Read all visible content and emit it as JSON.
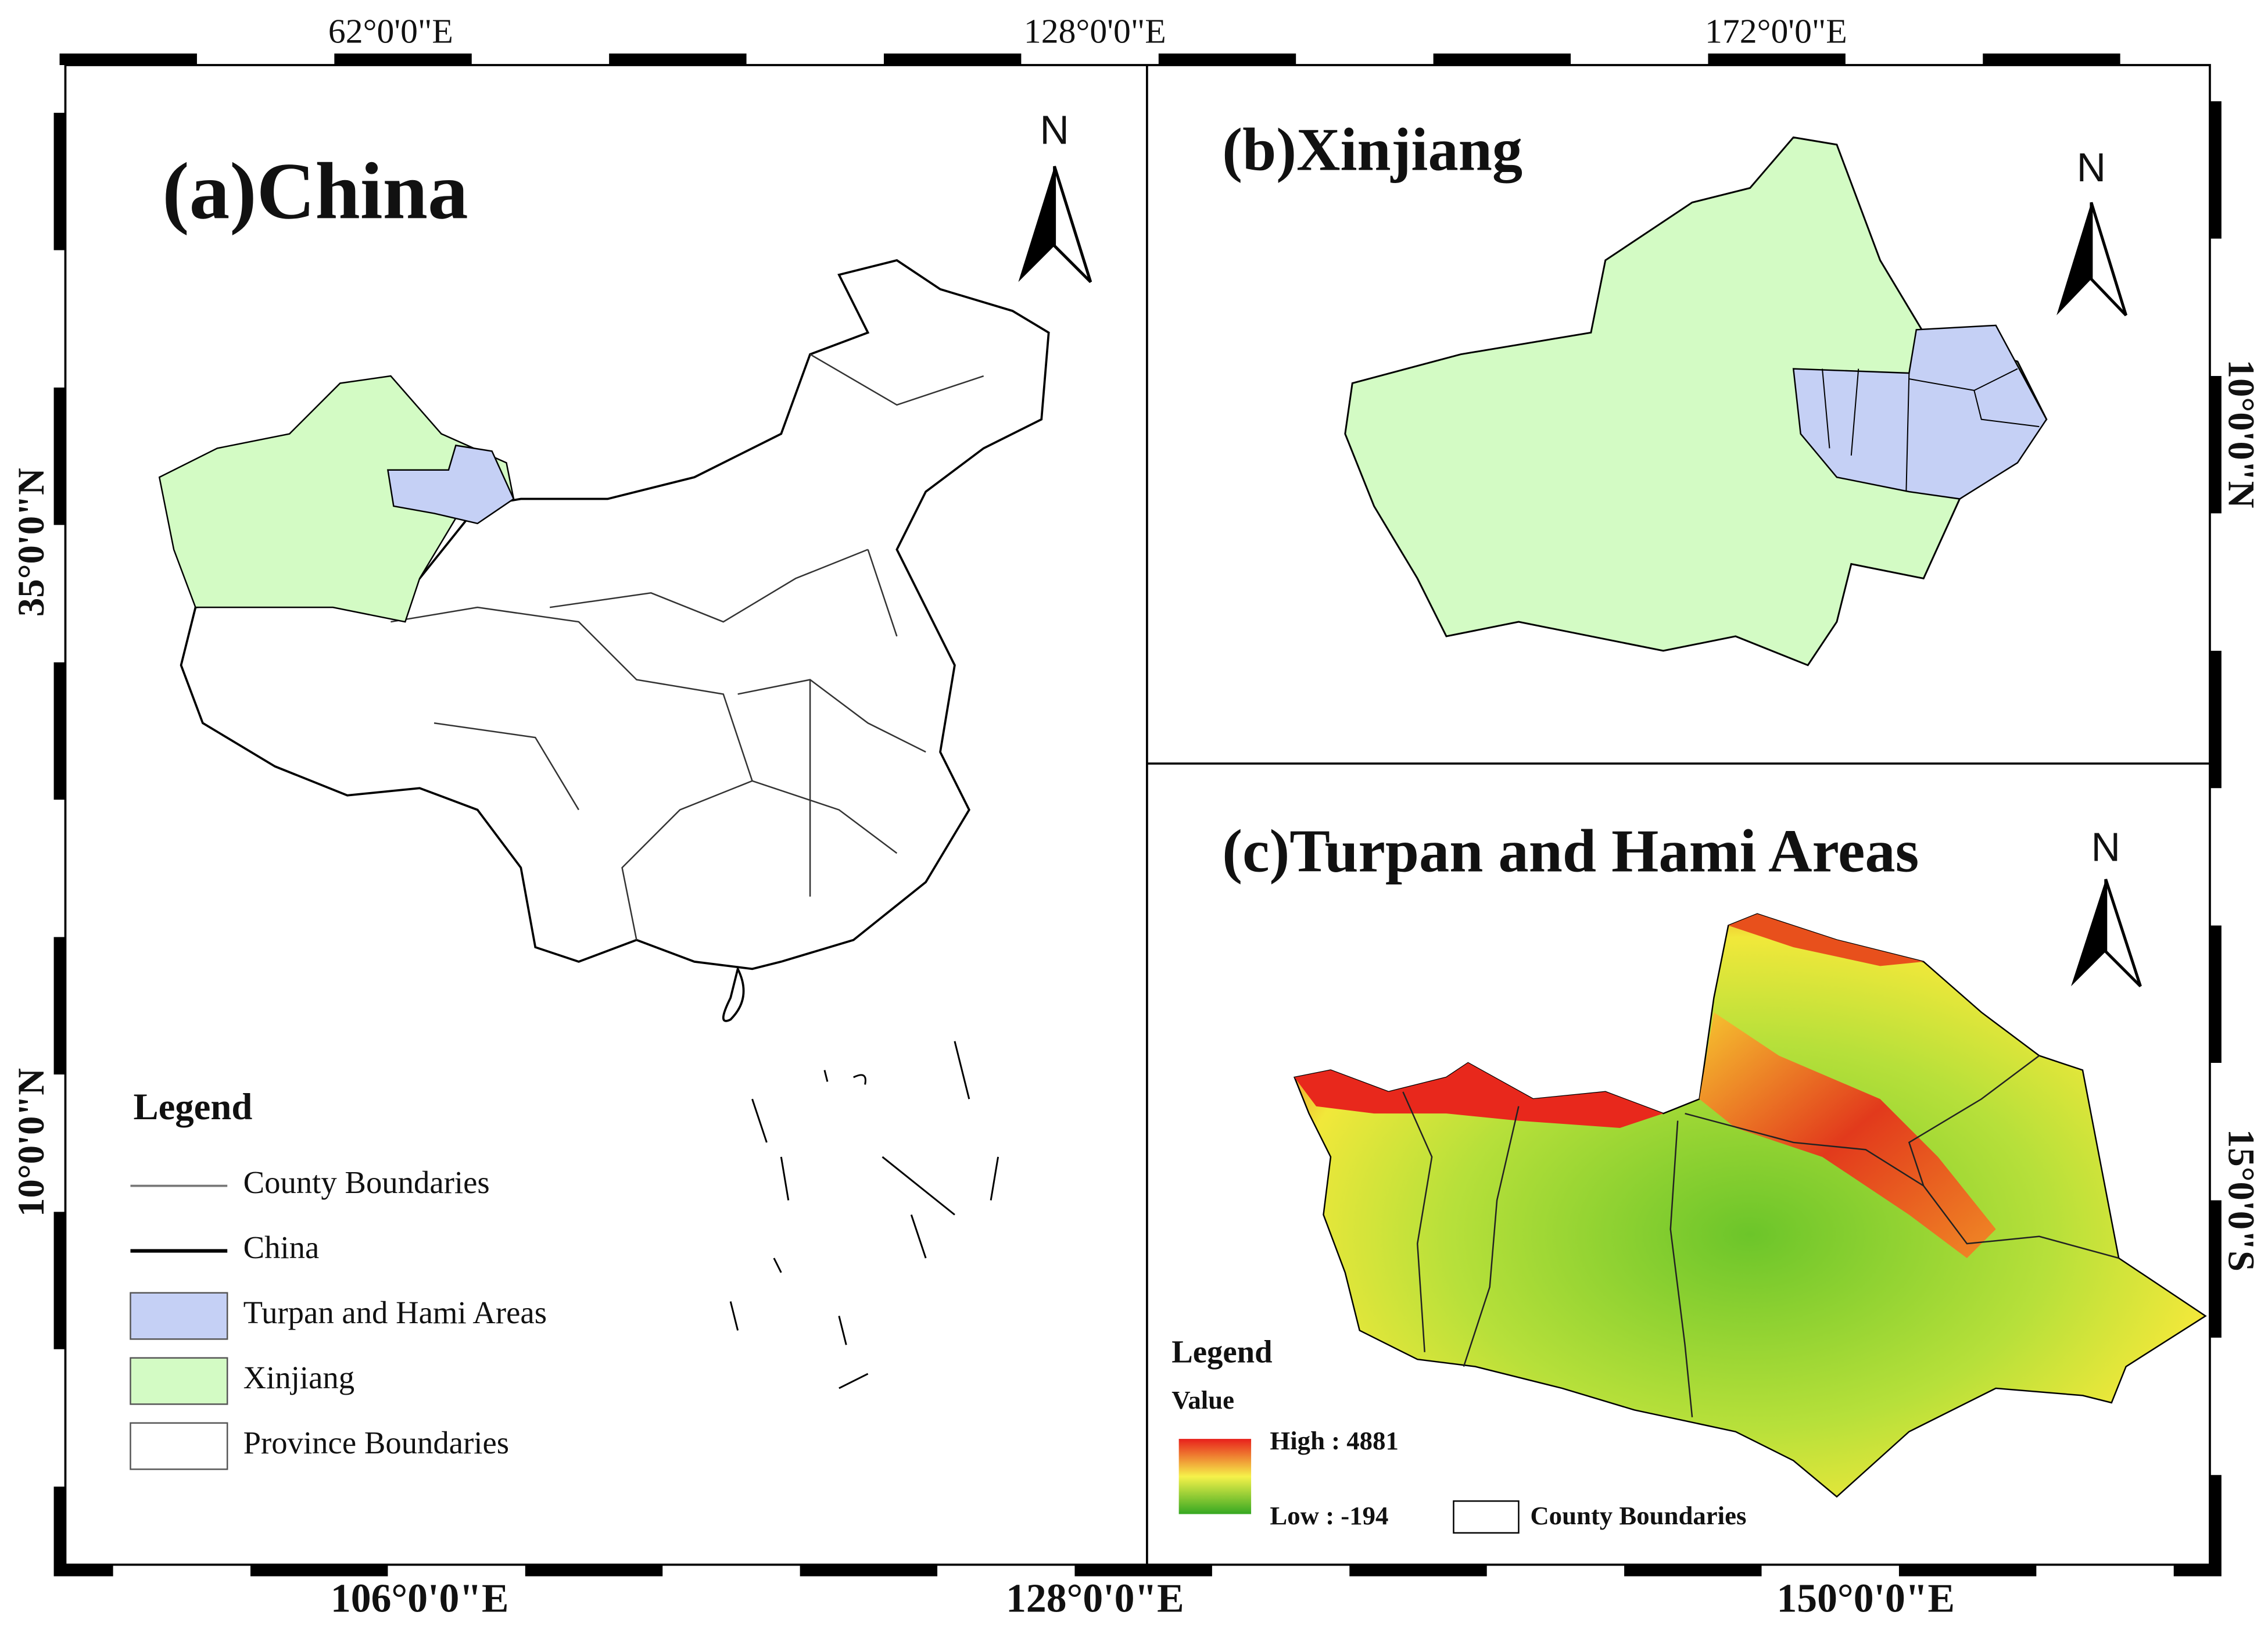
{
  "frame": {
    "top_labels": [
      "62°0'0\"E",
      "128°0'0\"E",
      "172°0'0\"E"
    ],
    "bottom_labels": [
      "106°0'0\"E",
      "128°0'0\"E",
      "150°0'0\"E"
    ],
    "left_labels": [
      "35°0'0\"N",
      "10°0'0\"N"
    ],
    "right_labels": [
      "10°0'0\"N",
      "15°0'0\"S"
    ]
  },
  "panels": [
    {
      "title": "(a)China",
      "north": "N",
      "legend": {
        "title": "Legend",
        "items": [
          "County Boundaries",
          "China",
          "Turpan and Hami Areas",
          "Xinjiang",
          "Province Boundaries"
        ]
      }
    },
    {
      "title": "(b)Xinjiang",
      "north": "N"
    },
    {
      "title": "(c)Turpan and Hami Areas",
      "north": "N",
      "legend": {
        "title": "Legend",
        "subtitle": "Value",
        "high": "High : 4881",
        "low": "Low : -194",
        "items": [
          "County Boundaries"
        ]
      }
    }
  ]
}
